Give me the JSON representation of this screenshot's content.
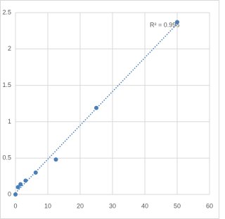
{
  "chart_data": {
    "type": "scatter",
    "annotation": "R² = 0.996",
    "series": [
      {
        "color": "#4a7ebb",
        "x": [
          0,
          0.78,
          1.56,
          3.125,
          6.25,
          12.5,
          25,
          50
        ],
        "values": [
          0,
          0.1,
          0.14,
          0.19,
          0.3,
          0.48,
          1.19,
          2.37
        ]
      }
    ],
    "trendline": "linear",
    "xlim": [
      0,
      60
    ],
    "xticks": [
      0,
      10,
      20,
      30,
      40,
      50,
      60
    ],
    "ylim": [
      0,
      2.5
    ],
    "yticks": [
      0,
      0.5,
      1,
      1.5,
      2,
      2.5
    ],
    "grid": true
  }
}
